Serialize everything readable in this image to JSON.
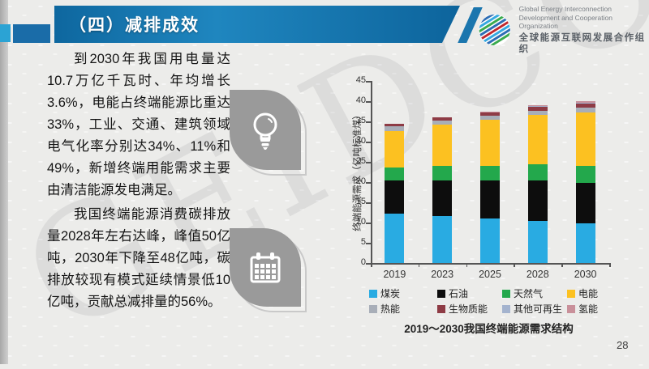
{
  "slide": {
    "title": "（四）减排成效",
    "page_number": "28",
    "watermark": "GEIDCO"
  },
  "logo": {
    "line1": "Global Energy Interconnection",
    "line2": "Development and Cooperation Organization",
    "line3": "全球能源互联网发展合作组织"
  },
  "body_text": {
    "paragraph1": "到2030年我国用电量达10.7万亿千瓦时、年均增长3.6%，电能占终端能源比重达33%，工业、交通、建筑领域电气化率分别达34%、11%和49%，新增终端用能需求主要由清洁能源发电满足。",
    "paragraph2": "我国终端能源消费碳排放量2028年左右达峰，峰值50亿吨，2030年下降至48亿吨，碳排放较现有模式延续情景低10亿吨，贡献总减排量的56%。"
  },
  "chart_data": {
    "type": "bar",
    "stacked": true,
    "title": "2019～2030我国终端能源需求结构",
    "ylabel": "终端能源需求（亿吨标准煤）",
    "xlabel": "",
    "categories": [
      "2019",
      "2023",
      "2025",
      "2028",
      "2030"
    ],
    "ylim": [
      0,
      45
    ],
    "ytick_step": 5,
    "grid": false,
    "legend_position": "bottom",
    "series": [
      {
        "name": "煤炭",
        "color": "#29abe2",
        "values": [
          12.2,
          11.7,
          11.0,
          10.5,
          9.8
        ]
      },
      {
        "name": "石油",
        "color": "#0d0d0d",
        "values": [
          8.3,
          8.8,
          9.4,
          9.9,
          10.1
        ]
      },
      {
        "name": "天然气",
        "color": "#23a84c",
        "values": [
          3.2,
          3.5,
          3.6,
          4.0,
          4.2
        ]
      },
      {
        "name": "电能",
        "color": "#fcc121",
        "values": [
          9.0,
          10.2,
          11.4,
          12.2,
          13.1
        ]
      },
      {
        "name": "热能",
        "color": "#a8aeb8",
        "values": [
          1.1,
          1.0,
          1.1,
          1.1,
          1.3
        ]
      },
      {
        "name": "生物质能",
        "color": "#8e3b45",
        "values": [
          0.7,
          0.8,
          0.9,
          0.9,
          1.0
        ]
      },
      {
        "name": "其他可再生",
        "color": "#a4b3ce",
        "values": [
          0.0,
          0.0,
          0.0,
          0.2,
          0.2
        ]
      },
      {
        "name": "氢能",
        "color": "#c9909a",
        "values": [
          0.0,
          0.0,
          0.1,
          0.2,
          0.3
        ]
      }
    ],
    "totals": [
      34.5,
      36.0,
      37.5,
      39.0,
      40.0
    ]
  }
}
